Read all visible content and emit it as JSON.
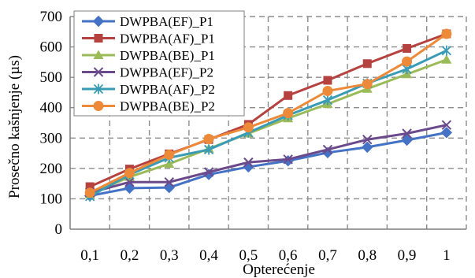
{
  "chart_data": {
    "type": "line",
    "xlabel": "Opterećenje",
    "ylabel": "Prosečno kašnjenje (µs)",
    "categories": [
      "0,1",
      "0,2",
      "0,3",
      "0,4",
      "0,5",
      "0,6",
      "0,7",
      "0,8",
      "0,9",
      "1"
    ],
    "ylim": [
      0,
      700
    ],
    "yticks": [
      "0",
      "100",
      "200",
      "300",
      "400",
      "500",
      "600",
      "700"
    ],
    "grid": true,
    "legend_position": "top-left",
    "series": [
      {
        "name": "DWPBA(EF)_P1",
        "color": "#4472c4",
        "marker": "diamond",
        "values": [
          110,
          135,
          137,
          180,
          205,
          225,
          252,
          270,
          293,
          318
        ]
      },
      {
        "name": "DWPBA(AF)_P1",
        "color": "#b5423f",
        "marker": "square",
        "values": [
          140,
          198,
          248,
          295,
          345,
          440,
          490,
          545,
          595,
          643
        ]
      },
      {
        "name": "DWPBA(BE)_P1",
        "color": "#9bbb59",
        "marker": "triangle",
        "values": [
          115,
          172,
          215,
          265,
          315,
          365,
          412,
          462,
          510,
          558
        ]
      },
      {
        "name": "DWPBA(EF)_P2",
        "color": "#6b4a8c",
        "marker": "x",
        "values": [
          120,
          155,
          155,
          188,
          220,
          230,
          262,
          295,
          315,
          343
        ]
      },
      {
        "name": "DWPBA(AF)_P2",
        "color": "#3a9bb5",
        "marker": "asterisk",
        "values": [
          108,
          180,
          235,
          262,
          318,
          375,
          425,
          480,
          527,
          588
        ]
      },
      {
        "name": "DWPBA(BE)_P2",
        "color": "#ed8a3a",
        "marker": "circle",
        "values": [
          120,
          185,
          245,
          297,
          335,
          382,
          455,
          478,
          552,
          643
        ]
      }
    ]
  }
}
